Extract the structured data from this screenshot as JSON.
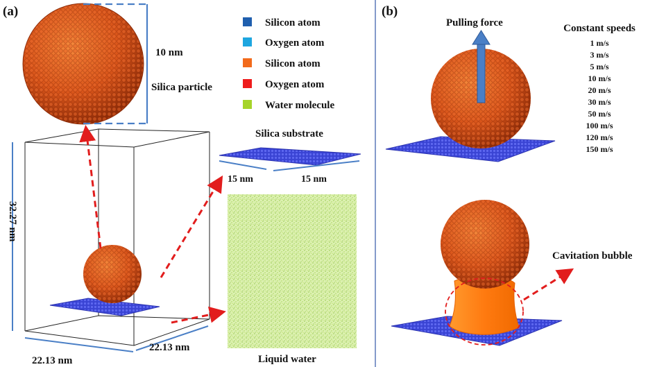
{
  "panels": {
    "a": {
      "label": "(a)",
      "legend": [
        {
          "label": "Silicon atom",
          "color": "#1f5fae"
        },
        {
          "label": "Oxygen atom",
          "color": "#1ea6e0"
        },
        {
          "label": "Silicon atom",
          "color": "#f26a1b"
        },
        {
          "label": "Oxygen atom",
          "color": "#ee1c1c"
        },
        {
          "label": "Water molecule",
          "color": "#a6d42a"
        }
      ],
      "particle_size": "10 nm",
      "particle_label": "Silica particle",
      "box_height": "32.27 nm",
      "box_width": "22.13 nm",
      "box_depth": "22.13 nm",
      "substrate_label": "Silica substrate",
      "substrate_w": "15 nm",
      "substrate_d": "15 nm",
      "water_label": "Liquid water"
    },
    "b": {
      "label": "(b)",
      "force_label": "Pulling force",
      "speeds_title": "Constant speeds",
      "speeds": [
        "1 m/s",
        "3 m/s",
        "5 m/s",
        "10 m/s",
        "20 m/s",
        "30 m/s",
        "50 m/s",
        "100 m/s",
        "120 m/s",
        "150 m/s"
      ],
      "bubble_label": "Cavitation bubble"
    }
  },
  "colors": {
    "sphere": "#d9551a",
    "sphere_dark": "#8e2c08",
    "substrate": "#3f48d8",
    "water": "#b4dc5a",
    "bubble": "#ff8a1e",
    "arrow_red": "#e21d1d",
    "dim_blue": "#4a7fc6",
    "force_arrow": "#4a7fc6"
  }
}
